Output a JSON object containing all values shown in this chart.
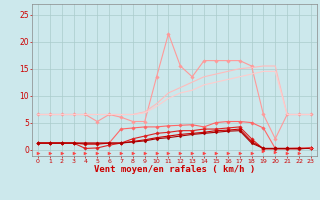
{
  "background_color": "#cce8ec",
  "grid_color": "#aacccc",
  "xlabel": "Vent moyen/en rafales ( km/h )",
  "xlabel_color": "#cc0000",
  "tick_color": "#cc0000",
  "xlim": [
    -0.5,
    23.5
  ],
  "ylim": [
    -1.2,
    27
  ],
  "yticks": [
    0,
    5,
    10,
    15,
    20,
    25
  ],
  "x": [
    0,
    1,
    2,
    3,
    4,
    5,
    6,
    7,
    8,
    9,
    10,
    11,
    12,
    13,
    14,
    15,
    16,
    17,
    18,
    19,
    20,
    21,
    22,
    23
  ],
  "series": [
    {
      "name": "light_pink_upper",
      "color": "#ff9999",
      "linewidth": 0.8,
      "marker": "D",
      "markersize": 1.8,
      "y": [
        6.5,
        6.5,
        6.5,
        6.5,
        6.5,
        5.2,
        6.5,
        6.0,
        5.2,
        5.2,
        13.5,
        21.5,
        15.5,
        13.5,
        16.5,
        16.5,
        16.5,
        16.5,
        15.5,
        6.5,
        2.0,
        6.5,
        6.5,
        6.5
      ]
    },
    {
      "name": "light_pink_mid1",
      "color": "#ffbbbb",
      "linewidth": 0.8,
      "marker": null,
      "markersize": 0,
      "y": [
        6.5,
        6.5,
        6.5,
        6.5,
        6.5,
        6.5,
        6.5,
        6.5,
        6.5,
        7.0,
        8.5,
        10.5,
        11.5,
        12.5,
        13.5,
        14.0,
        14.5,
        15.0,
        15.2,
        15.5,
        15.5,
        6.5,
        6.5,
        6.5
      ]
    },
    {
      "name": "light_pink_mid2",
      "color": "#ffcccc",
      "linewidth": 0.8,
      "marker": null,
      "markersize": 0,
      "y": [
        6.5,
        6.5,
        6.5,
        6.5,
        6.5,
        6.5,
        6.5,
        6.5,
        6.5,
        6.8,
        8.0,
        9.5,
        10.5,
        11.0,
        12.0,
        12.5,
        13.0,
        13.5,
        14.0,
        14.5,
        14.5,
        6.5,
        6.5,
        6.5
      ]
    },
    {
      "name": "salmon_upper",
      "color": "#ff6666",
      "linewidth": 0.8,
      "marker": "D",
      "markersize": 1.8,
      "y": [
        1.2,
        1.2,
        1.2,
        1.2,
        1.2,
        1.2,
        1.2,
        3.8,
        4.0,
        4.2,
        4.2,
        4.4,
        4.5,
        4.6,
        4.2,
        5.0,
        5.2,
        5.2,
        5.0,
        4.0,
        0.2,
        0.2,
        0.3,
        0.3
      ]
    },
    {
      "name": "red_mid",
      "color": "#dd2222",
      "linewidth": 0.8,
      "marker": "D",
      "markersize": 1.8,
      "y": [
        1.2,
        1.2,
        1.2,
        1.2,
        0.2,
        0.3,
        0.8,
        1.2,
        2.0,
        2.5,
        3.0,
        3.2,
        3.5,
        3.5,
        3.8,
        3.8,
        4.0,
        4.2,
        2.0,
        0.1,
        0.1,
        0.1,
        0.1,
        0.3
      ]
    },
    {
      "name": "dark_red_lower1",
      "color": "#cc0000",
      "linewidth": 0.8,
      "marker": "D",
      "markersize": 1.8,
      "y": [
        1.2,
        1.2,
        1.2,
        1.2,
        1.0,
        1.0,
        1.2,
        1.2,
        1.5,
        1.8,
        2.2,
        2.5,
        2.8,
        3.0,
        3.2,
        3.5,
        3.6,
        3.8,
        1.5,
        0.2,
        0.2,
        0.2,
        0.2,
        0.2
      ]
    },
    {
      "name": "dark_red_lower2",
      "color": "#aa0000",
      "linewidth": 0.8,
      "marker": "D",
      "markersize": 1.5,
      "y": [
        1.2,
        1.2,
        1.2,
        1.2,
        1.2,
        1.2,
        1.2,
        1.2,
        1.4,
        1.6,
        2.0,
        2.2,
        2.5,
        2.8,
        3.0,
        3.2,
        3.4,
        3.5,
        1.2,
        0.2,
        0.2,
        0.2,
        0.2,
        0.2
      ]
    },
    {
      "name": "arrow_line",
      "color": "#ff4444",
      "linewidth": 0.6,
      "marker": ">",
      "markersize": 2.2,
      "linestyle": "none",
      "y": [
        -0.7,
        -0.7,
        -0.7,
        -0.7,
        -0.7,
        -0.7,
        -0.7,
        -0.7,
        -0.7,
        -0.7,
        -0.7,
        -0.7,
        -0.7,
        -0.7,
        -0.7,
        -0.7,
        -0.7,
        -0.7,
        -0.7,
        -0.3,
        -0.5,
        -0.7,
        -0.7,
        0.3
      ]
    }
  ]
}
